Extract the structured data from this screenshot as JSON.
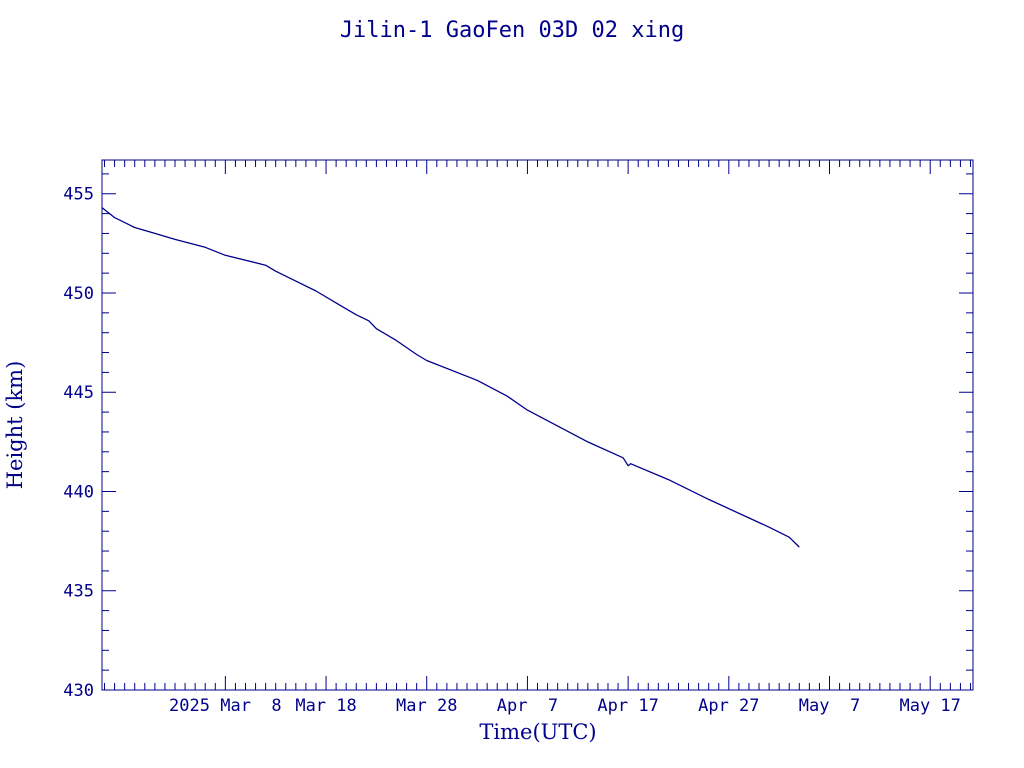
{
  "chart_data": {
    "type": "line",
    "title": "Jilin-1 GaoFen 03D 02 xing",
    "xlabel": "Time(UTC)",
    "ylabel": "Height (km)",
    "x_is_date": true,
    "xlim": [
      "2025-02-23T18:00",
      "2025-05-21T06:00"
    ],
    "ylim": [
      430,
      456.7
    ],
    "yticks": [
      430,
      435,
      440,
      445,
      450,
      455
    ],
    "xticks": [
      {
        "date": "2025-03-08",
        "label": "2025 Mar  8"
      },
      {
        "date": "2025-03-18",
        "label": "Mar 18"
      },
      {
        "date": "2025-03-28",
        "label": "Mar 28"
      },
      {
        "date": "2025-04-07",
        "label": "Apr  7"
      },
      {
        "date": "2025-04-17",
        "label": "Apr 17"
      },
      {
        "date": "2025-04-27",
        "label": "Apr 27"
      },
      {
        "date": "2025-05-07",
        "label": "May  7"
      },
      {
        "date": "2025-05-17",
        "label": "May 17"
      }
    ],
    "grid": false,
    "series": [
      {
        "color": "#00008b",
        "points": [
          [
            "2025-02-23T18:00",
            454.3
          ],
          [
            "2025-02-25T00:00",
            453.8
          ],
          [
            "2025-02-27T00:00",
            453.3
          ],
          [
            "2025-03-01T00:00",
            453.0
          ],
          [
            "2025-03-03T00:00",
            452.7
          ],
          [
            "2025-03-06T00:00",
            452.3
          ],
          [
            "2025-03-08T00:00",
            451.9
          ],
          [
            "2025-03-12T00:00",
            451.4
          ],
          [
            "2025-03-13T00:00",
            451.1
          ],
          [
            "2025-03-15T00:00",
            450.6
          ],
          [
            "2025-03-17T00:00",
            450.1
          ],
          [
            "2025-03-19T00:00",
            449.5
          ],
          [
            "2025-03-21T00:00",
            448.9
          ],
          [
            "2025-03-22T06:00",
            448.6
          ],
          [
            "2025-03-23T00:00",
            448.2
          ],
          [
            "2025-03-25T00:00",
            447.6
          ],
          [
            "2025-03-27T00:00",
            446.9
          ],
          [
            "2025-03-28T00:00",
            446.6
          ],
          [
            "2025-04-02T00:00",
            445.6
          ],
          [
            "2025-04-05T00:00",
            444.8
          ],
          [
            "2025-04-07T00:00",
            444.1
          ],
          [
            "2025-04-13T00:00",
            442.5
          ],
          [
            "2025-04-16T12:00",
            441.7
          ],
          [
            "2025-04-17T00:00",
            441.3
          ],
          [
            "2025-04-17T06:00",
            441.4
          ],
          [
            "2025-04-21T00:00",
            440.6
          ],
          [
            "2025-04-25T00:00",
            439.6
          ],
          [
            "2025-05-01T00:00",
            438.2
          ],
          [
            "2025-05-03T00:00",
            437.7
          ],
          [
            "2025-05-04T00:00",
            437.2
          ]
        ]
      }
    ]
  }
}
